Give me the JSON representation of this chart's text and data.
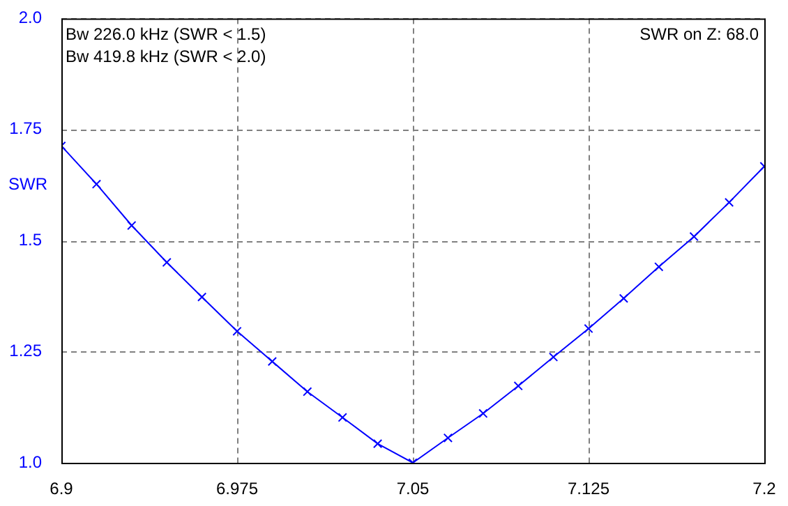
{
  "chart_data": {
    "type": "line",
    "ylabel": "SWR",
    "x": [
      6.9,
      6.915,
      6.93,
      6.945,
      6.96,
      6.975,
      6.99,
      7.005,
      7.02,
      7.035,
      7.05,
      7.065,
      7.08,
      7.095,
      7.11,
      7.125,
      7.14,
      7.155,
      7.17,
      7.185,
      7.2
    ],
    "series": [
      {
        "color": "#0000ff",
        "values": [
          1.713,
          1.627,
          1.534,
          1.451,
          1.373,
          1.296,
          1.228,
          1.16,
          1.102,
          1.043,
          1.0,
          1.056,
          1.111,
          1.173,
          1.238,
          1.302,
          1.37,
          1.441,
          1.509,
          1.586,
          1.667
        ]
      }
    ],
    "xlim": [
      6.9,
      7.2
    ],
    "xticks": [
      6.9,
      6.975,
      7.05,
      7.125,
      7.2
    ],
    "ylim": [
      1.0,
      2.0
    ],
    "yticks": [
      {
        "value": 1.0,
        "label": "1.0"
      },
      1.25,
      1.5,
      1.75,
      {
        "value": 2.0,
        "label": "2.0"
      }
    ],
    "grid": true,
    "legend": false,
    "marker": "cross",
    "line_style": "solid",
    "annotations": [
      "Bw 226.0 kHz (SWR < 1.5)",
      "Bw 419.8 kHz (SWR < 2.0)",
      "SWR on Z: 68.0"
    ]
  }
}
